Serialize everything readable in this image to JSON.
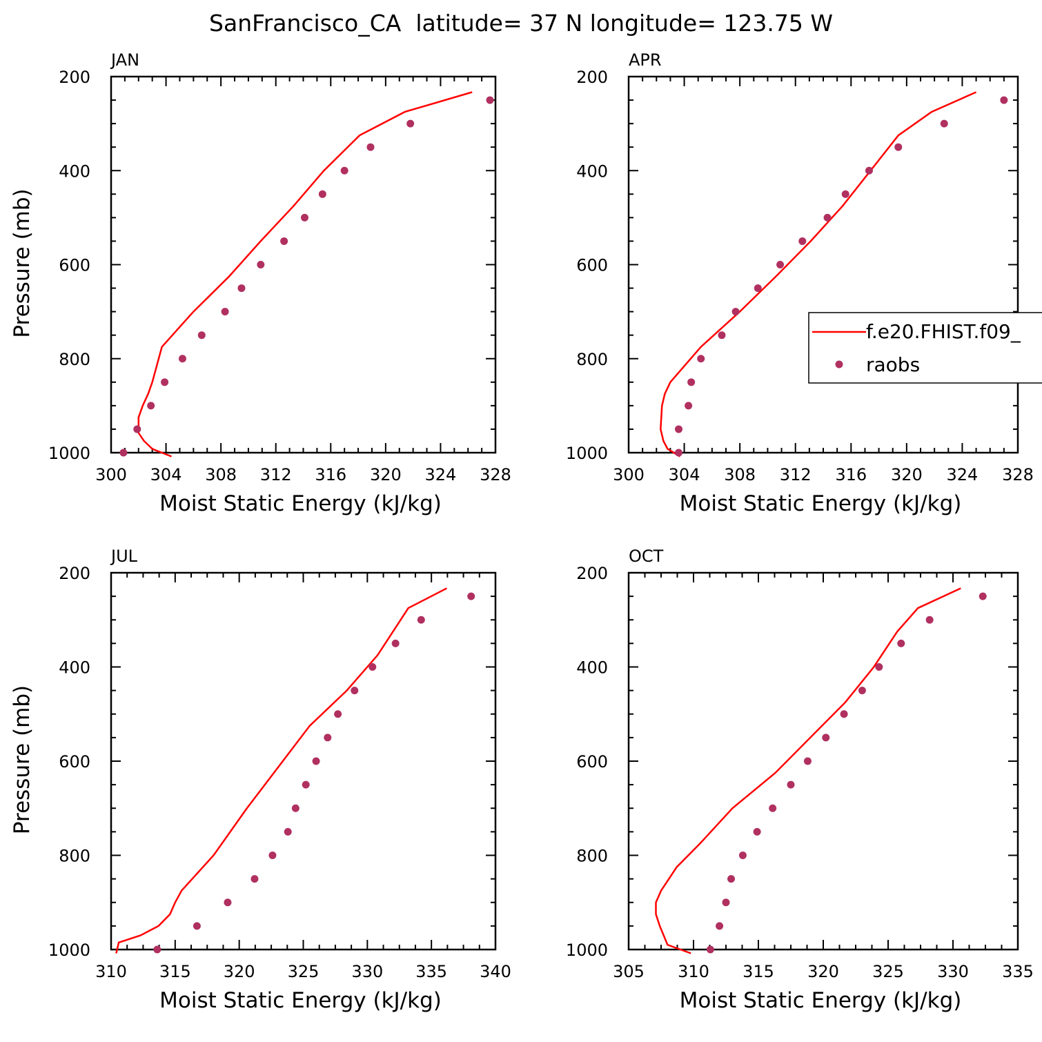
{
  "figure": {
    "title": "SanFrancisco_CA  latitude= 37 N longitude= 123.75 W"
  },
  "legend": {
    "model_label": "f.e20.FHIST.f09_",
    "obs_label": "raobs",
    "model_color": "#ff0000",
    "obs_color": "#b03060"
  },
  "chart_data": [
    {
      "type": "line",
      "panel_label": "JAN",
      "xlabel": "Moist Static Energy (kJ/kg)",
      "ylabel": "Pressure (mb)",
      "xlim": [
        300,
        328
      ],
      "xticks": [
        300,
        304,
        308,
        312,
        316,
        320,
        324,
        328
      ],
      "ylim": [
        200,
        1000
      ],
      "yticks": [
        200,
        400,
        600,
        800,
        1000
      ],
      "y_inverted": true,
      "legend": false,
      "model": {
        "x": [
          304.4,
          303.0,
          302.4,
          302.0,
          302.0,
          302.3,
          302.7,
          303.0,
          303.7,
          306.0,
          308.6,
          310.9,
          313.3,
          315.5,
          318.1,
          321.4,
          326.3
        ],
        "y": [
          1008,
          992,
          975,
          958,
          925,
          900,
          875,
          850,
          775,
          700,
          625,
          550,
          475,
          400,
          325,
          275,
          233
        ]
      },
      "obs": {
        "x": [
          300.9,
          301.9,
          302.9,
          303.9,
          305.2,
          306.6,
          308.3,
          309.5,
          310.9,
          312.6,
          314.1,
          315.4,
          317.0,
          318.9,
          321.8,
          327.6
        ],
        "y": [
          1000,
          950,
          900,
          850,
          800,
          750,
          700,
          650,
          600,
          550,
          500,
          450,
          400,
          350,
          300,
          250
        ]
      }
    },
    {
      "type": "line",
      "panel_label": "APR",
      "xlabel": "Moist Static Energy (kJ/kg)",
      "ylabel": "",
      "xlim": [
        300,
        328
      ],
      "xticks": [
        300,
        304,
        308,
        312,
        316,
        320,
        324,
        328
      ],
      "ylim": [
        200,
        1000
      ],
      "yticks": [
        200,
        400,
        600,
        800,
        1000
      ],
      "y_inverted": true,
      "legend": true,
      "model": {
        "x": [
          303.7,
          302.8,
          302.5,
          302.3,
          302.4,
          302.6,
          303.0,
          305.2,
          308.0,
          310.6,
          313.1,
          315.4,
          317.4,
          319.4,
          321.8,
          325.0
        ],
        "y": [
          1008,
          992,
          975,
          950,
          900,
          875,
          850,
          775,
          700,
          625,
          550,
          475,
          400,
          325,
          275,
          233
        ]
      },
      "obs": {
        "x": [
          303.6,
          303.6,
          304.3,
          304.5,
          305.2,
          306.7,
          307.7,
          309.3,
          310.9,
          312.5,
          314.3,
          315.6,
          317.3,
          319.4,
          322.7,
          327.0
        ],
        "y": [
          1000,
          950,
          900,
          850,
          800,
          750,
          700,
          650,
          600,
          550,
          500,
          450,
          400,
          350,
          300,
          250
        ]
      }
    },
    {
      "type": "line",
      "panel_label": "JUL",
      "xlabel": "Moist Static Energy (kJ/kg)",
      "ylabel": "Pressure (mb)",
      "xlim": [
        310,
        340
      ],
      "xticks": [
        310,
        315,
        320,
        325,
        330,
        335,
        340
      ],
      "ylim": [
        200,
        1000
      ],
      "yticks": [
        200,
        400,
        600,
        800,
        1000
      ],
      "y_inverted": true,
      "legend": false,
      "model": {
        "x": [
          310.4,
          310.6,
          312.3,
          313.7,
          314.6,
          315.0,
          315.5,
          318.0,
          320.6,
          323.4,
          325.5,
          328.4,
          330.8,
          333.2,
          336.2
        ],
        "y": [
          1008,
          985,
          970,
          950,
          925,
          900,
          875,
          800,
          700,
          600,
          525,
          450,
          375,
          275,
          233
        ]
      },
      "obs": {
        "x": [
          313.6,
          316.7,
          319.1,
          321.2,
          322.6,
          323.8,
          324.4,
          325.2,
          326.0,
          326.9,
          327.7,
          329.0,
          330.4,
          332.2,
          334.2,
          338.1
        ],
        "y": [
          1000,
          950,
          900,
          850,
          800,
          750,
          700,
          650,
          600,
          550,
          500,
          450,
          400,
          350,
          300,
          250
        ]
      }
    },
    {
      "type": "line",
      "panel_label": "OCT",
      "xlabel": "Moist Static Energy (kJ/kg)",
      "ylabel": "",
      "xlim": [
        305,
        335
      ],
      "xticks": [
        305,
        310,
        315,
        320,
        325,
        330,
        335
      ],
      "ylim": [
        200,
        1000
      ],
      "yticks": [
        200,
        400,
        600,
        800,
        1000
      ],
      "y_inverted": true,
      "legend": false,
      "model": {
        "x": [
          309.8,
          308.0,
          307.4,
          307.1,
          307.1,
          307.5,
          308.7,
          310.5,
          313.0,
          316.3,
          319.0,
          321.7,
          323.9,
          325.7,
          327.3,
          330.6
        ],
        "y": [
          1008,
          990,
          950,
          925,
          900,
          875,
          825,
          775,
          700,
          625,
          550,
          475,
          400,
          325,
          275,
          233
        ]
      },
      "obs": {
        "x": [
          311.3,
          312.0,
          312.5,
          312.9,
          313.8,
          314.9,
          316.1,
          317.5,
          318.8,
          320.2,
          321.6,
          323.0,
          324.3,
          326.0,
          328.2,
          332.3
        ],
        "y": [
          1000,
          950,
          900,
          850,
          800,
          750,
          700,
          650,
          600,
          550,
          500,
          450,
          400,
          350,
          300,
          250
        ]
      }
    }
  ]
}
